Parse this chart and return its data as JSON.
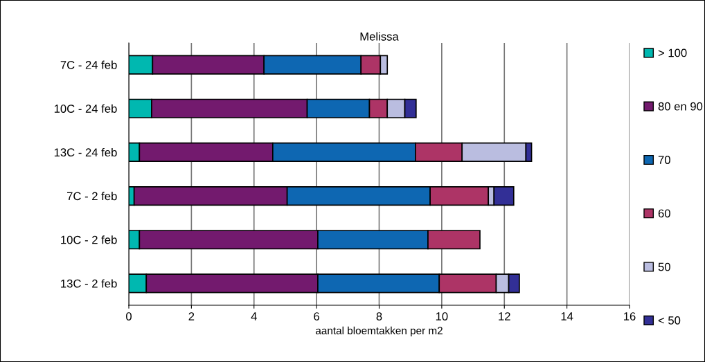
{
  "chart_data": {
    "type": "bar",
    "orientation": "horizontal",
    "stacked": true,
    "title": "Melissa",
    "xlabel": "aantal bloemtakken per m2",
    "categories": [
      "7C - 24 feb",
      "10C - 24 feb",
      "13C - 24 feb",
      "7C - 2 feb",
      "10C - 2 feb",
      "13C - 2 feb"
    ],
    "series": [
      {
        "name": "> 100",
        "color": "#00b8b0",
        "values": [
          0.76,
          0.73,
          0.34,
          0.17,
          0.34,
          0.56
        ]
      },
      {
        "name": "80 en 90",
        "color": "#731a6e",
        "values": [
          3.56,
          4.97,
          4.26,
          4.89,
          5.7,
          5.48
        ]
      },
      {
        "name": "70",
        "color": "#0e67b2",
        "values": [
          3.1,
          1.99,
          4.56,
          4.57,
          3.52,
          3.88
        ]
      },
      {
        "name": "60",
        "color": "#ad3466",
        "values": [
          0.62,
          0.57,
          1.49,
          1.86,
          1.66,
          1.82
        ]
      },
      {
        "name": "50",
        "color": "#babde0",
        "values": [
          0.22,
          0.56,
          2.04,
          0.18,
          null,
          0.4
        ]
      },
      {
        "name": "< 50",
        "color": "#322f96",
        "values": [
          null,
          0.36,
          0.18,
          0.63,
          null,
          0.34
        ]
      }
    ],
    "xlim": [
      0,
      16
    ],
    "xticks": [
      0,
      2,
      4,
      6,
      8,
      10,
      12,
      14,
      16
    ],
    "grid": "x",
    "legend": "right"
  }
}
